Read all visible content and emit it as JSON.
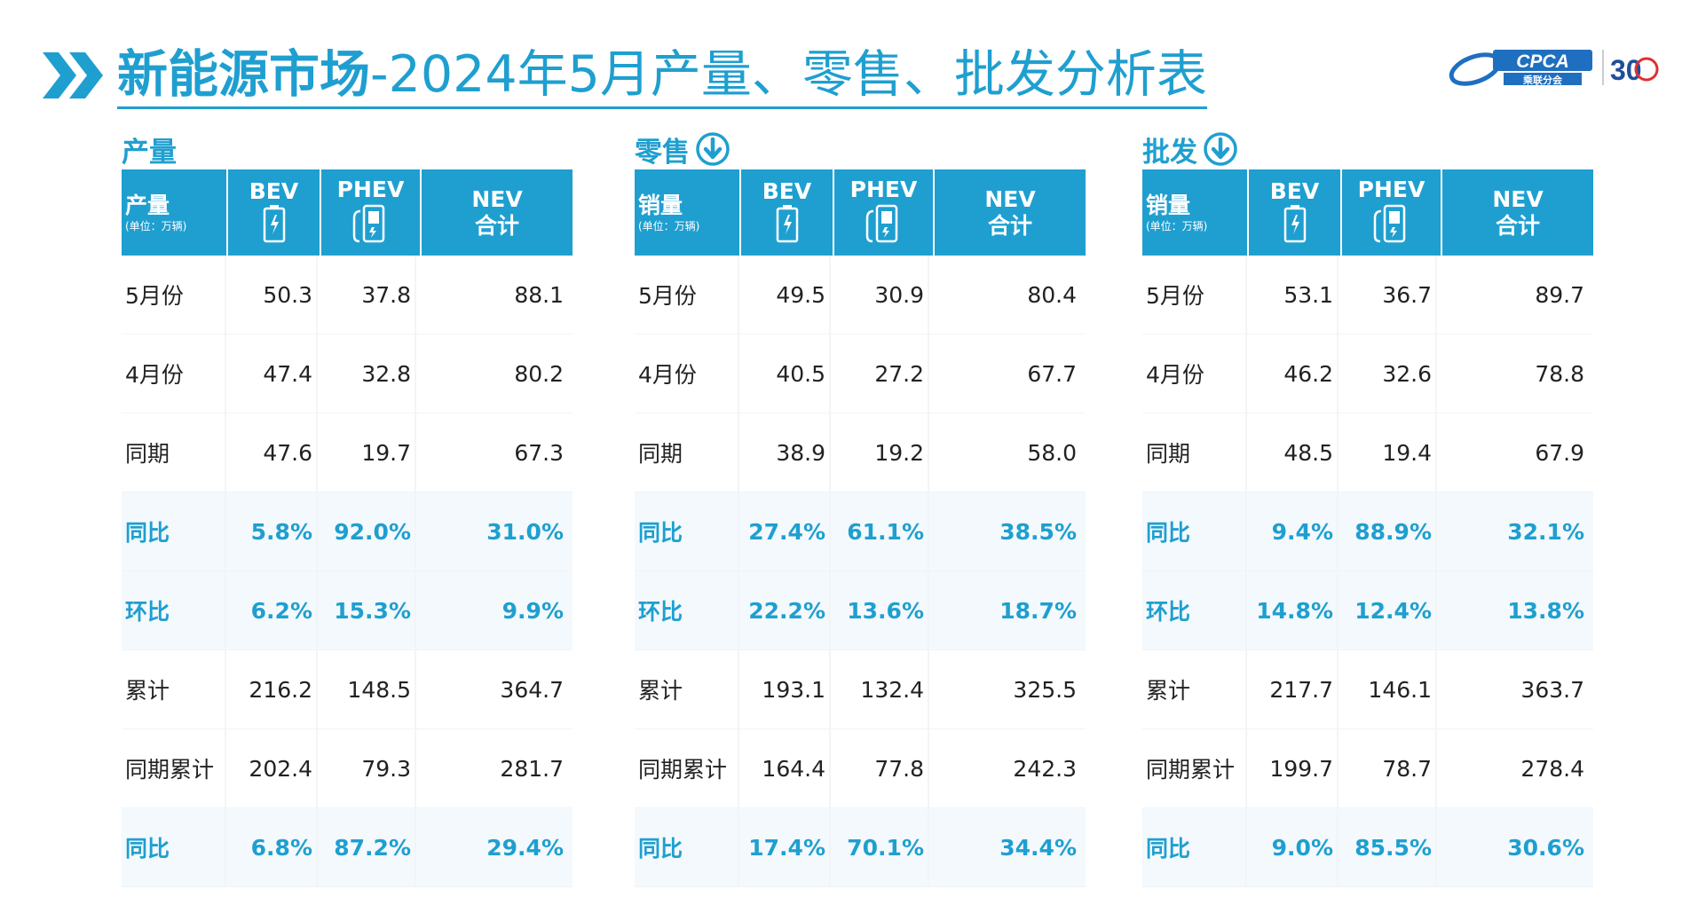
{
  "header": {
    "title_bold": "新能源市场",
    "title_rest": "-2024年5月产量、零售、批发分析表",
    "logo_text": "CPCA",
    "logo_sub": "乘联分会",
    "logo_anniv": "30"
  },
  "columns": {
    "bev": "BEV",
    "phev": "PHEV",
    "nev_line1": "NEV",
    "nev_line2": "合计",
    "unit": "(单位：万辆)"
  },
  "sections": [
    {
      "label": "产量",
      "header_label": "产量",
      "rows": [
        {
          "label": "5月份",
          "bev": "50.3",
          "phev": "37.8",
          "nev": "88.1",
          "highlight": false
        },
        {
          "label": "4月份",
          "bev": "47.4",
          "phev": "32.8",
          "nev": "80.2",
          "highlight": false
        },
        {
          "label": "同期",
          "bev": "47.6",
          "phev": "19.7",
          "nev": "67.3",
          "highlight": false
        },
        {
          "label": "同比",
          "bev": "5.8%",
          "phev": "92.0%",
          "nev": "31.0%",
          "highlight": true
        },
        {
          "label": "环比",
          "bev": "6.2%",
          "phev": "15.3%",
          "nev": "9.9%",
          "highlight": true
        },
        {
          "label": "累计",
          "bev": "216.2",
          "phev": "148.5",
          "nev": "364.7",
          "highlight": false
        },
        {
          "label": "同期累计",
          "bev": "202.4",
          "phev": "79.3",
          "nev": "281.7",
          "highlight": false
        },
        {
          "label": "同比",
          "bev": "6.8%",
          "phev": "87.2%",
          "nev": "29.4%",
          "highlight": true
        }
      ]
    },
    {
      "label": "零售",
      "header_label": "销量",
      "rows": [
        {
          "label": "5月份",
          "bev": "49.5",
          "phev": "30.9",
          "nev": "80.4",
          "highlight": false
        },
        {
          "label": "4月份",
          "bev": "40.5",
          "phev": "27.2",
          "nev": "67.7",
          "highlight": false
        },
        {
          "label": "同期",
          "bev": "38.9",
          "phev": "19.2",
          "nev": "58.0",
          "highlight": false
        },
        {
          "label": "同比",
          "bev": "27.4%",
          "phev": "61.1%",
          "nev": "38.5%",
          "highlight": true
        },
        {
          "label": "环比",
          "bev": "22.2%",
          "phev": "13.6%",
          "nev": "18.7%",
          "highlight": true
        },
        {
          "label": "累计",
          "bev": "193.1",
          "phev": "132.4",
          "nev": "325.5",
          "highlight": false
        },
        {
          "label": "同期累计",
          "bev": "164.4",
          "phev": "77.8",
          "nev": "242.3",
          "highlight": false
        },
        {
          "label": "同比",
          "bev": "17.4%",
          "phev": "70.1%",
          "nev": "34.4%",
          "highlight": true
        }
      ]
    },
    {
      "label": "批发",
      "header_label": "销量",
      "rows": [
        {
          "label": "5月份",
          "bev": "53.1",
          "phev": "36.7",
          "nev": "89.7",
          "highlight": false
        },
        {
          "label": "4月份",
          "bev": "46.2",
          "phev": "32.6",
          "nev": "78.8",
          "highlight": false
        },
        {
          "label": "同期",
          "bev": "48.5",
          "phev": "19.4",
          "nev": "67.9",
          "highlight": false
        },
        {
          "label": "同比",
          "bev": "9.4%",
          "phev": "88.9%",
          "nev": "32.1%",
          "highlight": true
        },
        {
          "label": "环比",
          "bev": "14.8%",
          "phev": "12.4%",
          "nev": "13.8%",
          "highlight": true
        },
        {
          "label": "累计",
          "bev": "217.7",
          "phev": "146.1",
          "nev": "363.7",
          "highlight": false
        },
        {
          "label": "同期累计",
          "bev": "199.7",
          "phev": "78.7",
          "nev": "278.4",
          "highlight": false
        },
        {
          "label": "同比",
          "bev": "9.0%",
          "phev": "85.5%",
          "nev": "30.6%",
          "highlight": true
        }
      ]
    }
  ],
  "colors": {
    "accent": "#1f9fd0",
    "highlight_row": "#f3f9fd"
  }
}
